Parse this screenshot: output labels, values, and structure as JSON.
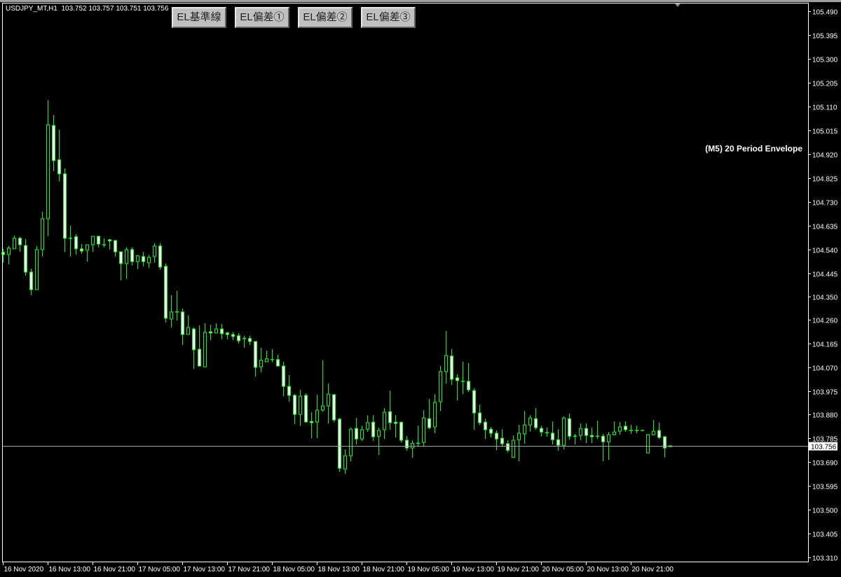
{
  "header": {
    "symbol": "USDJPY_MT,H1",
    "ohlc": "103.752 103.757 103.751 103.756"
  },
  "buttons": [
    {
      "label": "EL基準線"
    },
    {
      "label": "EL偏差①"
    },
    {
      "label": "EL偏差②"
    },
    {
      "label": "EL偏差③"
    }
  ],
  "indicator_label": "(M5) 20 Period Envelope",
  "colors": {
    "background": "#000000",
    "candle_outline": "#00ff00",
    "bear_fill": "#ffffff",
    "bull_fill": "#000000",
    "axis": "#ffffff",
    "price_line": "#a0a0a0"
  },
  "chart_data": {
    "type": "candlestick",
    "symbol": "USDJPY_MT",
    "timeframe": "H1",
    "current_price": "103.756",
    "ylim": [
      103.305,
      105.49
    ],
    "yticks": [
      "105.490",
      "105.395",
      "105.300",
      "105.205",
      "105.110",
      "105.015",
      "104.920",
      "104.825",
      "104.730",
      "104.635",
      "104.540",
      "104.445",
      "104.350",
      "104.260",
      "104.165",
      "104.070",
      "103.975",
      "103.880",
      "103.785",
      "103.690",
      "103.595",
      "103.500",
      "103.405",
      "103.310"
    ],
    "xticks": [
      {
        "label": "16 Nov 2020",
        "bar": 0
      },
      {
        "label": "16 Nov 13:00",
        "bar": 8
      },
      {
        "label": "16 Nov 21:00",
        "bar": 16
      },
      {
        "label": "17 Nov 05:00",
        "bar": 24
      },
      {
        "label": "17 Nov 13:00",
        "bar": 32
      },
      {
        "label": "17 Nov 21:00",
        "bar": 40
      },
      {
        "label": "18 Nov 05:00",
        "bar": 48
      },
      {
        "label": "18 Nov 13:00",
        "bar": 56
      },
      {
        "label": "18 Nov 21:00",
        "bar": 64
      },
      {
        "label": "19 Nov 05:00",
        "bar": 72
      },
      {
        "label": "19 Nov 13:00",
        "bar": 80
      },
      {
        "label": "19 Nov 21:00",
        "bar": 88
      },
      {
        "label": "20 Nov 05:00",
        "bar": 96
      },
      {
        "label": "20 Nov 13:00",
        "bar": 104
      },
      {
        "label": "20 Nov 21:00",
        "bar": 112
      }
    ],
    "candles_ohlc": [
      [
        104.528,
        104.542,
        104.486,
        104.519
      ],
      [
        104.519,
        104.553,
        104.48,
        104.545
      ],
      [
        104.542,
        104.595,
        104.542,
        104.584
      ],
      [
        104.584,
        104.59,
        104.53,
        104.558
      ],
      [
        104.555,
        104.581,
        104.435,
        104.449
      ],
      [
        104.449,
        104.463,
        104.357,
        104.379
      ],
      [
        104.379,
        104.553,
        104.379,
        104.539
      ],
      [
        104.539,
        104.69,
        104.511,
        104.662
      ],
      [
        104.662,
        105.135,
        104.592,
        105.037
      ],
      [
        105.034,
        105.076,
        104.852,
        104.894
      ],
      [
        104.897,
        105.017,
        104.81,
        104.841
      ],
      [
        104.841,
        104.863,
        104.53,
        104.584
      ],
      [
        104.584,
        104.634,
        104.511,
        104.584
      ],
      [
        104.59,
        104.601,
        104.519,
        104.542
      ],
      [
        104.542,
        104.561,
        104.522,
        104.533
      ],
      [
        104.536,
        104.558,
        104.491,
        104.558
      ],
      [
        104.558,
        104.592,
        104.53,
        104.592
      ],
      [
        104.592,
        104.592,
        104.548,
        104.561
      ],
      [
        104.558,
        104.584,
        104.548,
        104.558
      ],
      [
        104.578,
        104.581,
        104.539,
        104.573
      ],
      [
        104.575,
        104.575,
        104.511,
        104.53
      ],
      [
        104.53,
        104.53,
        104.416,
        104.483
      ],
      [
        104.483,
        104.548,
        104.422,
        104.539
      ],
      [
        104.539,
        104.548,
        104.475,
        104.491
      ],
      [
        104.491,
        104.517,
        104.461,
        104.514
      ],
      [
        104.511,
        104.53,
        104.472,
        104.491
      ],
      [
        104.486,
        104.517,
        104.466,
        104.508
      ],
      [
        104.511,
        104.564,
        104.486,
        104.553
      ],
      [
        104.553,
        104.564,
        104.458,
        104.469
      ],
      [
        104.472,
        104.483,
        104.248,
        104.265
      ],
      [
        104.262,
        104.357,
        104.228,
        104.29
      ],
      [
        104.29,
        104.374,
        104.256,
        104.29
      ],
      [
        104.29,
        104.304,
        104.158,
        104.2
      ],
      [
        104.2,
        104.276,
        104.2,
        104.228
      ],
      [
        104.222,
        104.228,
        104.063,
        104.139
      ],
      [
        104.141,
        104.236,
        104.074,
        104.074
      ],
      [
        104.071,
        104.245,
        104.071,
        104.209
      ],
      [
        104.211,
        104.239,
        104.178,
        104.206
      ],
      [
        104.206,
        104.245,
        104.206,
        104.222
      ],
      [
        104.222,
        104.242,
        104.181,
        104.203
      ],
      [
        104.206,
        104.211,
        104.181,
        104.2
      ],
      [
        104.2,
        104.209,
        104.178,
        104.192
      ],
      [
        104.195,
        104.206,
        104.164,
        104.175
      ],
      [
        104.184,
        104.195,
        104.147,
        104.184
      ],
      [
        104.184,
        104.195,
        104.158,
        104.172
      ],
      [
        104.172,
        104.172,
        104.032,
        104.069
      ],
      [
        104.071,
        104.147,
        104.049,
        104.097
      ],
      [
        104.091,
        104.136,
        104.091,
        104.103
      ],
      [
        104.1,
        104.141,
        104.089,
        104.1
      ],
      [
        104.1,
        104.119,
        104.074,
        104.074
      ],
      [
        104.074,
        104.091,
        103.954,
        103.993
      ],
      [
        103.993,
        104.038,
        103.932,
        103.957
      ],
      [
        103.957,
        103.962,
        103.842,
        103.881
      ],
      [
        103.881,
        103.979,
        103.836,
        103.954
      ],
      [
        103.957,
        103.965,
        103.848,
        103.851
      ],
      [
        103.853,
        103.89,
        103.786,
        103.848
      ],
      [
        103.851,
        103.96,
        103.786,
        103.898
      ],
      [
        103.898,
        104.097,
        103.892,
        103.915
      ],
      [
        103.915,
        104.004,
        103.845,
        103.962
      ],
      [
        103.96,
        103.96,
        103.85,
        103.859
      ],
      [
        103.862,
        103.867,
        103.652,
        103.666
      ],
      [
        103.663,
        103.741,
        103.643,
        103.716
      ],
      [
        103.716,
        103.828,
        103.694,
        103.822
      ],
      [
        103.825,
        103.867,
        103.761,
        103.783
      ],
      [
        103.783,
        103.836,
        103.775,
        103.82
      ],
      [
        103.822,
        103.876,
        103.811,
        103.848
      ],
      [
        103.85,
        103.878,
        103.775,
        103.792
      ],
      [
        103.794,
        103.828,
        103.719,
        103.817
      ],
      [
        103.82,
        103.906,
        103.783,
        103.89
      ],
      [
        103.892,
        103.976,
        103.82,
        103.848
      ],
      [
        103.85,
        103.878,
        103.789,
        103.845
      ],
      [
        103.85,
        103.85,
        103.769,
        103.778
      ],
      [
        103.778,
        103.794,
        103.736,
        103.747
      ],
      [
        103.747,
        103.778,
        103.708,
        103.766
      ],
      [
        103.766,
        103.836,
        103.752,
        103.766
      ],
      [
        103.769,
        103.898,
        103.752,
        103.867
      ],
      [
        103.864,
        103.943,
        103.822,
        103.828
      ],
      [
        103.831,
        103.962,
        103.806,
        103.929
      ],
      [
        103.932,
        104.074,
        103.895,
        104.052
      ],
      [
        104.052,
        104.214,
        104.004,
        104.116
      ],
      [
        104.114,
        104.142,
        103.999,
        104.021
      ],
      [
        104.027,
        104.041,
        103.937,
        104.016
      ],
      [
        104.013,
        104.091,
        103.962,
        104.013
      ],
      [
        104.013,
        104.086,
        103.971,
        103.979
      ],
      [
        103.976,
        103.985,
        103.82,
        103.887
      ],
      [
        103.887,
        103.92,
        103.839,
        103.848
      ],
      [
        103.85,
        103.864,
        103.783,
        103.82
      ],
      [
        103.822,
        103.831,
        103.789,
        103.806
      ],
      [
        103.806,
        103.817,
        103.738,
        103.783
      ],
      [
        103.786,
        103.822,
        103.755,
        103.764
      ],
      [
        103.764,
        103.778,
        103.73,
        103.738
      ],
      [
        103.71,
        103.797,
        103.708,
        103.778
      ],
      [
        103.78,
        103.839,
        103.694,
        103.806
      ],
      [
        103.803,
        103.895,
        103.764,
        103.839
      ],
      [
        103.839,
        103.878,
        103.814,
        103.867
      ],
      [
        103.864,
        103.906,
        103.82,
        103.828
      ],
      [
        103.825,
        103.836,
        103.794,
        103.811
      ],
      [
        103.808,
        103.828,
        103.792,
        103.808
      ],
      [
        103.806,
        103.853,
        103.761,
        103.78
      ],
      [
        103.78,
        103.822,
        103.736,
        103.758
      ],
      [
        103.758,
        103.873,
        103.741,
        103.867
      ],
      [
        103.864,
        103.884,
        103.78,
        103.794
      ],
      [
        103.794,
        103.803,
        103.761,
        103.794
      ],
      [
        103.797,
        103.845,
        103.778,
        103.825
      ],
      [
        103.825,
        103.845,
        103.766,
        103.797
      ],
      [
        103.797,
        103.828,
        103.766,
        103.792
      ],
      [
        103.794,
        103.856,
        103.783,
        103.794
      ],
      [
        103.794,
        103.803,
        103.694,
        103.772
      ],
      [
        103.772,
        103.811,
        103.699,
        103.8
      ],
      [
        103.8,
        103.853,
        103.797,
        103.811
      ],
      [
        103.814,
        103.85,
        103.8,
        103.831
      ],
      [
        103.834,
        103.853,
        103.811,
        103.82
      ],
      [
        103.817,
        103.839,
        103.803,
        103.817
      ],
      [
        103.817,
        103.836,
        103.806,
        103.817
      ],
      [
        103.817,
        103.82,
        103.817,
        103.817
      ],
      [
        103.727,
        103.803,
        103.727,
        103.8
      ],
      [
        103.8,
        103.859,
        103.797,
        103.814
      ],
      [
        103.817,
        103.848,
        103.783,
        103.789
      ],
      [
        103.792,
        103.794,
        103.71,
        103.747
      ],
      [
        103.752,
        103.757,
        103.751,
        103.756
      ]
    ]
  }
}
